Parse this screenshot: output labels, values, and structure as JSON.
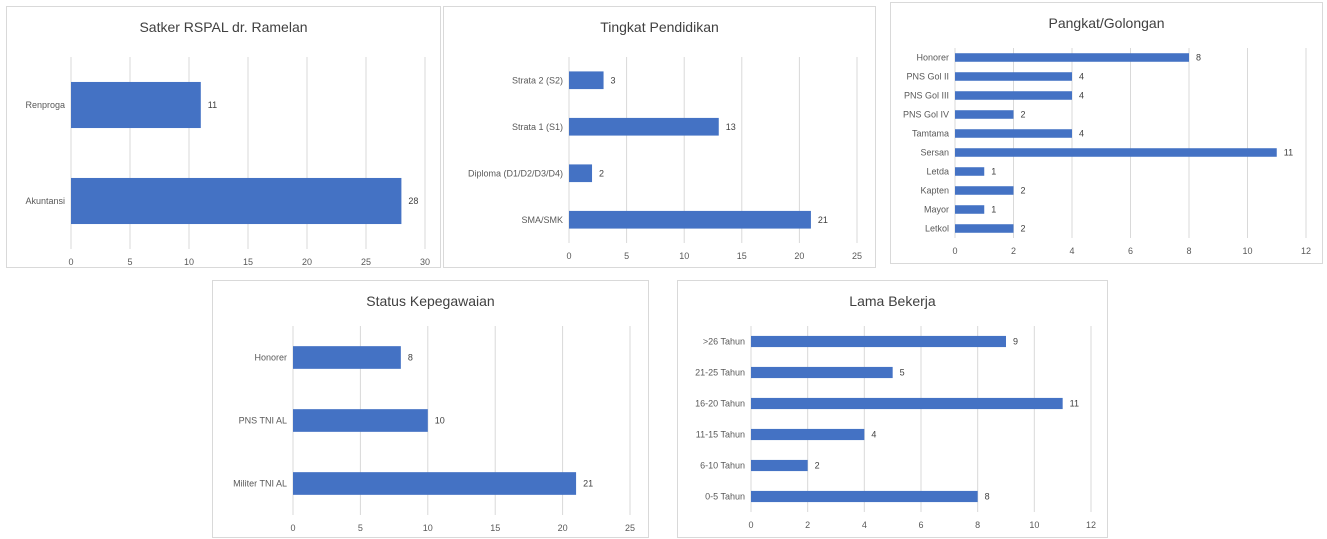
{
  "chart_data": [
    {
      "type": "bar",
      "orientation": "horizontal",
      "title": "Satker RSPAL dr. Ramelan",
      "categories": [
        "Renproga",
        "Akuntansi"
      ],
      "values": [
        11,
        28
      ],
      "xlim": [
        0,
        30
      ],
      "xticks": [
        0,
        5,
        10,
        15,
        20,
        25,
        30
      ],
      "grid": true,
      "color": "#4472c4"
    },
    {
      "type": "bar",
      "orientation": "horizontal",
      "title": "Tingkat Pendidikan",
      "categories": [
        "Strata 2 (S2)",
        "Strata 1 (S1)",
        "Diploma (D1/D2/D3/D4)",
        "SMA/SMK"
      ],
      "values": [
        3,
        13,
        2,
        21
      ],
      "xlim": [
        0,
        25
      ],
      "xticks": [
        0,
        5,
        10,
        15,
        20,
        25
      ],
      "grid": true,
      "color": "#4472c4"
    },
    {
      "type": "bar",
      "orientation": "horizontal",
      "title": "Pangkat/Golongan",
      "categories": [
        "Honorer",
        "PNS Gol II",
        "PNS Gol III",
        "PNS Gol IV",
        "Tamtama",
        "Sersan",
        "Letda",
        "Kapten",
        "Mayor",
        "Letkol"
      ],
      "values": [
        8,
        4,
        4,
        2,
        4,
        11,
        1,
        2,
        1,
        2
      ],
      "xlim": [
        0,
        12
      ],
      "xticks": [
        0,
        2,
        4,
        6,
        8,
        10,
        12
      ],
      "grid": true,
      "color": "#4472c4"
    },
    {
      "type": "bar",
      "orientation": "horizontal",
      "title": "Status Kepegawaian",
      "categories": [
        "Honorer",
        "PNS TNI AL",
        "Militer TNI AL"
      ],
      "values": [
        8,
        10,
        21
      ],
      "xlim": [
        0,
        25
      ],
      "xticks": [
        0,
        5,
        10,
        15,
        20,
        25
      ],
      "grid": true,
      "color": "#4472c4"
    },
    {
      "type": "bar",
      "orientation": "horizontal",
      "title": "Lama Bekerja",
      "categories": [
        ">26 Tahun",
        "21-25 Tahun",
        "16-20 Tahun",
        "11-15 Tahun",
        "6-10 Tahun",
        "0-5 Tahun"
      ],
      "values": [
        9,
        5,
        11,
        4,
        2,
        8
      ],
      "xlim": [
        0,
        12
      ],
      "xticks": [
        0,
        2,
        4,
        6,
        8,
        10,
        12
      ],
      "grid": true,
      "color": "#4472c4"
    }
  ]
}
